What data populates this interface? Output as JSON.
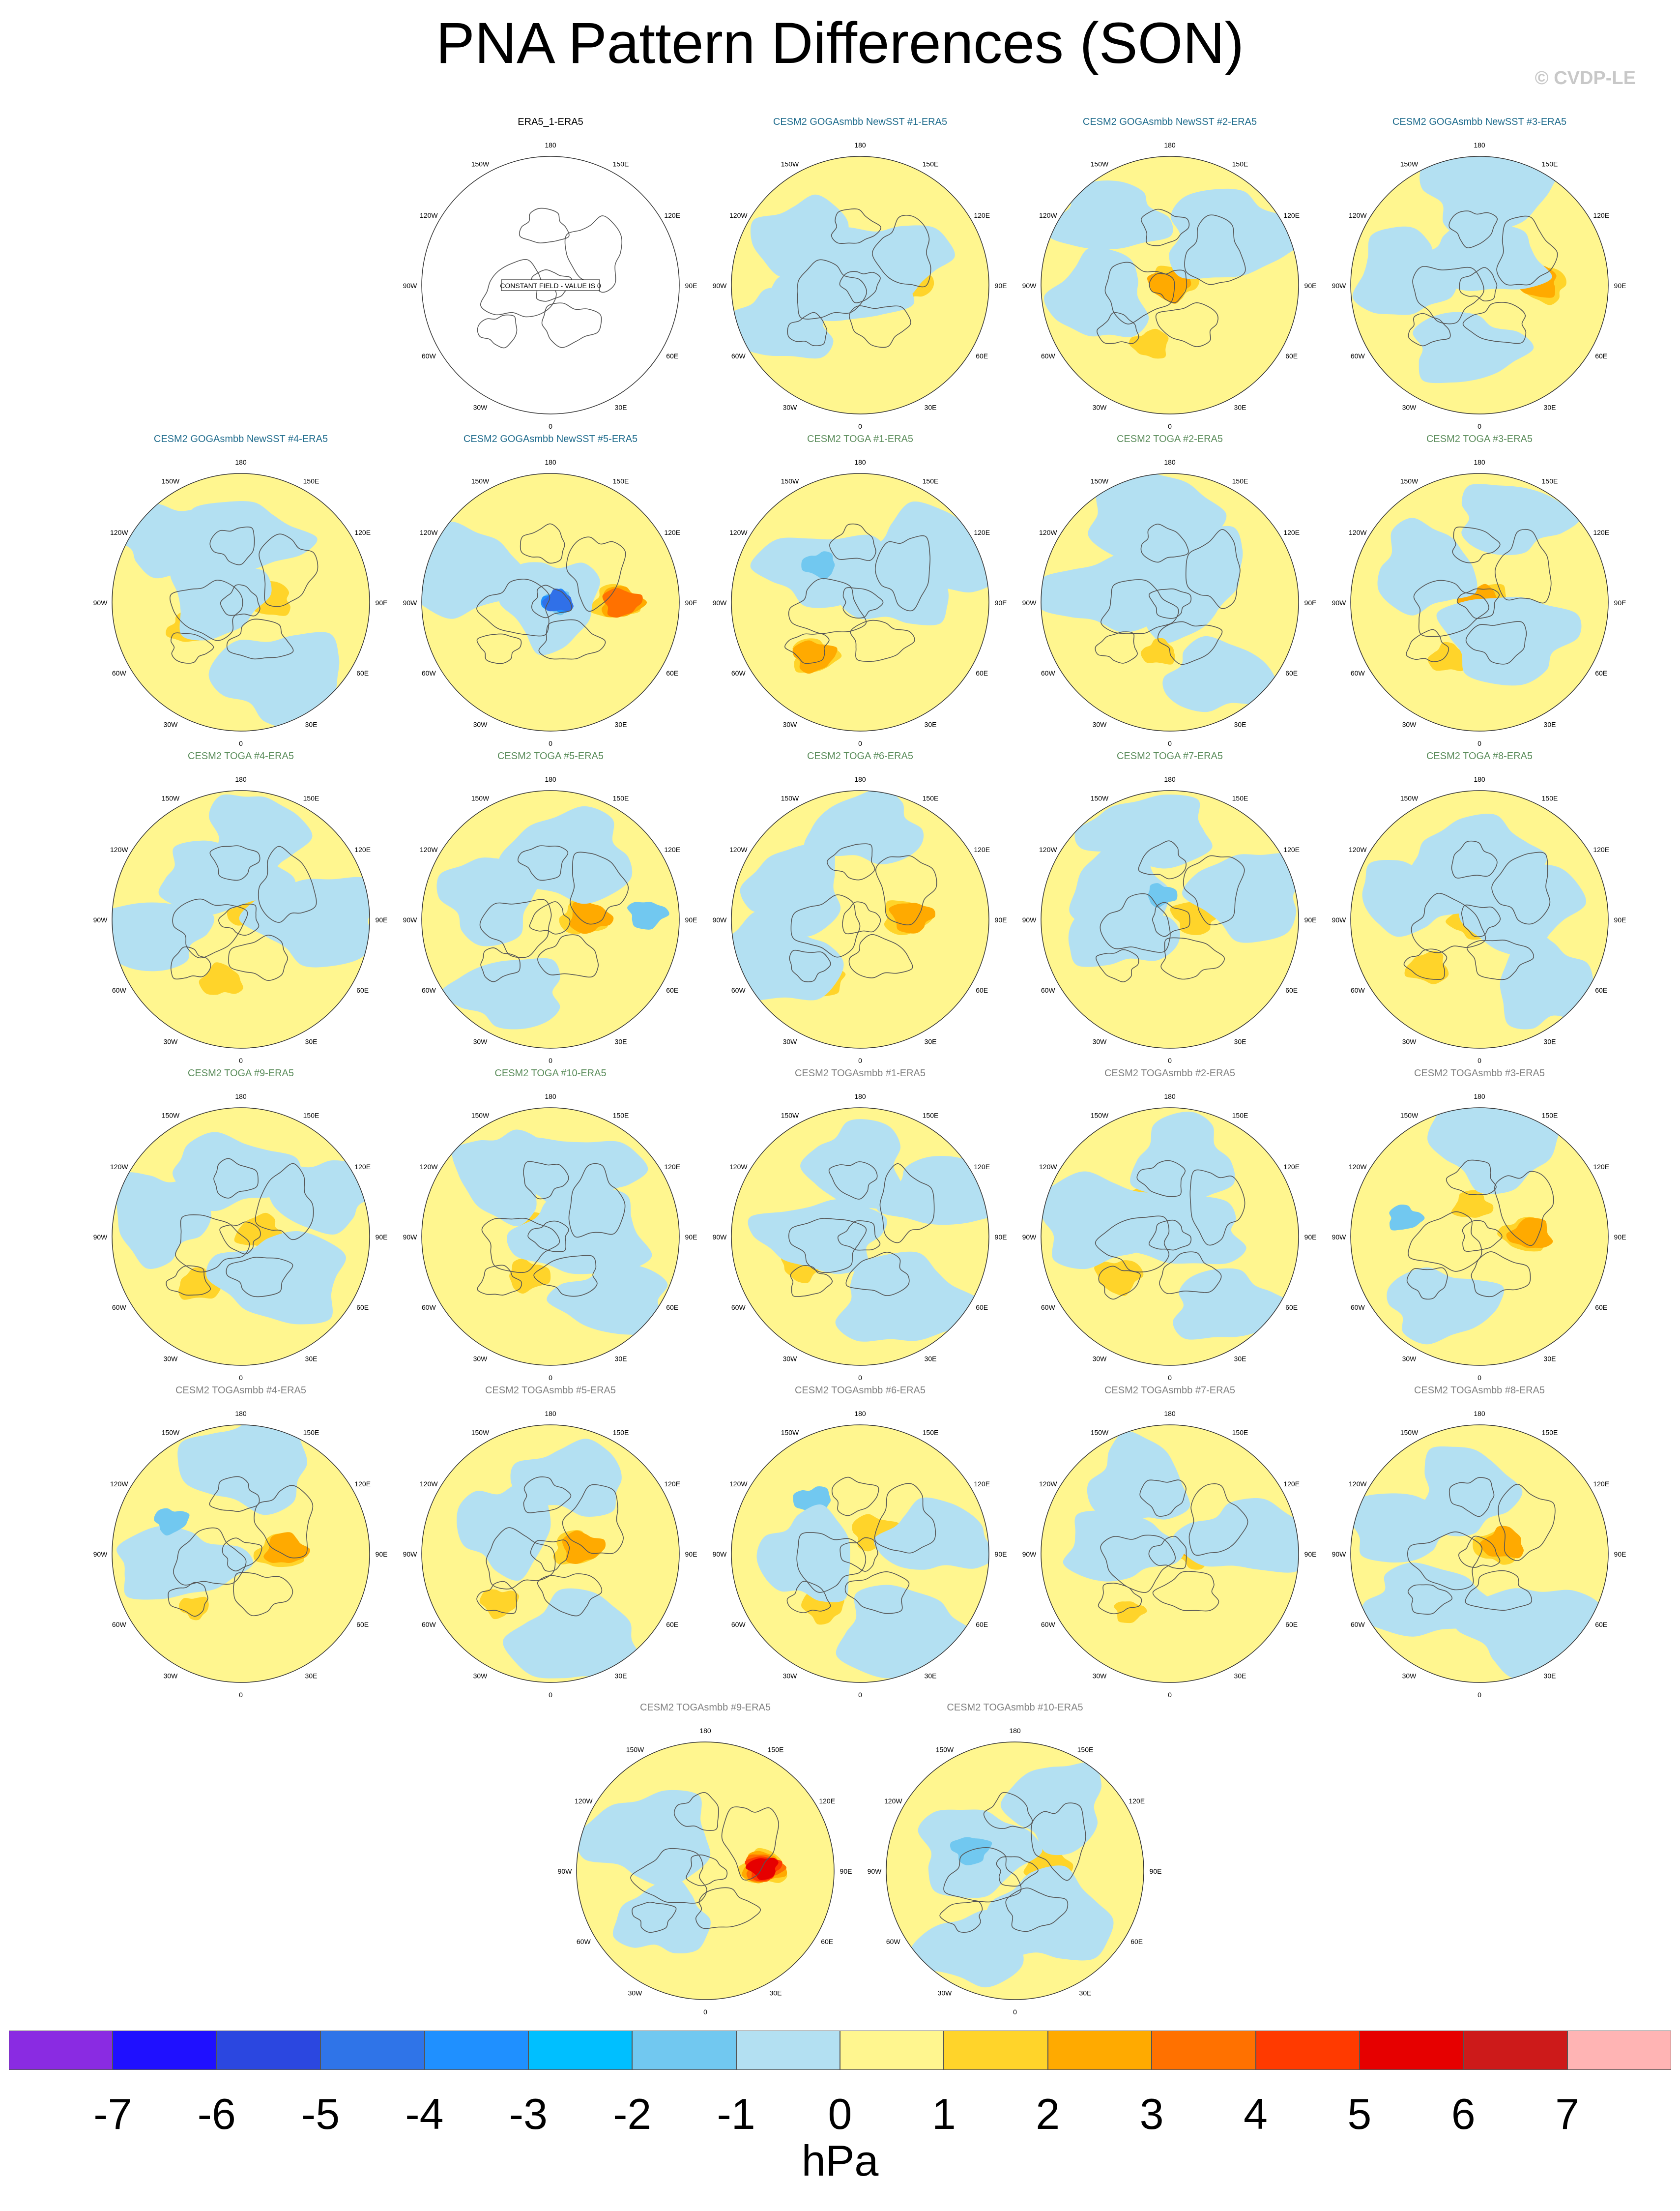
{
  "title": "PNA Pattern Differences (SON)",
  "credit": "© CVDP-LE",
  "colors": {
    "land": "#555555",
    "panel_title_obs": "#000000",
    "panel_title_goga": "#1e6b8c",
    "panel_title_toga": "#5a8c5a",
    "panel_title_togasmbb": "#808080"
  },
  "degree_labels": [
    "180",
    "150E",
    "120E",
    "90E",
    "60E",
    "30E",
    "0",
    "30W",
    "60W",
    "90W",
    "120W",
    "150W"
  ],
  "panels": [
    {
      "title": "ERA5_1-ERA5",
      "group": "obs",
      "constant": true,
      "constant_text": "CONSTANT FIELD - VALUE IS 0",
      "cells": []
    },
    {
      "title": "CESM2 GOGAsmbb NewSST #1-ERA5",
      "group": "goga",
      "cells": [
        [
          0.38,
          0.03,
          "#ffd42a"
        ],
        [
          0.28,
          -0.12,
          "#ffd42a"
        ],
        [
          0.3,
          0.8,
          "#b3e0f2"
        ],
        [
          0.55,
          2.5,
          "#b3e0f2"
        ],
        [
          0.7,
          3.6,
          "#b3e0f2"
        ],
        [
          0.15,
          2.9,
          "#b3e0f2"
        ]
      ]
    },
    {
      "title": "CESM2 GOGAsmbb NewSST #2-ERA5",
      "group": "goga",
      "cells": [
        [
          0.05,
          0.5,
          "#ffd42a"
        ],
        [
          0.0,
          0.0,
          "#ffaa00"
        ],
        [
          0.48,
          4.4,
          "#ffd42a"
        ],
        [
          0.55,
          3.3,
          "#b3e0f2"
        ],
        [
          0.7,
          2.3,
          "#b3e0f2"
        ],
        [
          0.6,
          0.7,
          "#b3e0f2"
        ]
      ]
    },
    {
      "title": "CESM2 GOGAsmbb NewSST #3-ERA5",
      "group": "goga",
      "cells": [
        [
          0.5,
          0.0,
          "#ffd42a"
        ],
        [
          0.45,
          0.05,
          "#ffaa00"
        ],
        [
          0.2,
          1.5,
          "#b3e0f2"
        ],
        [
          0.6,
          3.0,
          "#b3e0f2"
        ],
        [
          0.5,
          4.5,
          "#b3e0f2"
        ],
        [
          0.75,
          1.5,
          "#b3e0f2"
        ]
      ]
    },
    {
      "title": "CESM2 GOGAsmbb NewSST #4-ERA5",
      "group": "goga",
      "cells": [
        [
          0.22,
          0.1,
          "#ffd42a"
        ],
        [
          0.45,
          3.6,
          "#ffd42a"
        ],
        [
          0.5,
          1.6,
          "#b3e0f2"
        ],
        [
          0.2,
          2.8,
          "#b3e0f2"
        ],
        [
          0.75,
          2.4,
          "#b3e0f2"
        ],
        [
          0.65,
          5.2,
          "#b3e0f2"
        ]
      ]
    },
    {
      "title": "CESM2 GOGAsmbb NewSST #5-ERA5",
      "group": "goga",
      "cells": [
        [
          0.5,
          0.0,
          "#ffd42a"
        ],
        [
          0.55,
          0.0,
          "#ffaa00"
        ],
        [
          0.55,
          0.0,
          "#ff7100"
        ],
        [
          0.0,
          0.0,
          "#b3e0f2"
        ],
        [
          0.05,
          0.0,
          "#71c8f0"
        ],
        [
          0.05,
          0.1,
          "#1e90ff"
        ],
        [
          0.06,
          0.1,
          "#3070e8"
        ],
        [
          0.7,
          2.8,
          "#b3e0f2"
        ]
      ]
    },
    {
      "title": "CESM2 TOGA #1-ERA5",
      "group": "toga",
      "cells": [
        [
          0.55,
          4.0,
          "#ffd42a"
        ],
        [
          0.55,
          4.0,
          "#ffaa00"
        ],
        [
          0.4,
          2.4,
          "#b3e0f2"
        ],
        [
          0.43,
          2.4,
          "#71c8f0"
        ],
        [
          0.3,
          0.3,
          "#b3e0f2"
        ],
        [
          0.65,
          0.6,
          "#b3e0f2"
        ]
      ]
    },
    {
      "title": "CESM2 TOGA #2-ERA5",
      "group": "toga",
      "cells": [
        [
          0.05,
          0.0,
          "#b3e0f2"
        ],
        [
          0.3,
          1.0,
          "#b3e0f2"
        ],
        [
          0.5,
          3.0,
          "#b3e0f2"
        ],
        [
          0.4,
          4.5,
          "#ffd42a"
        ],
        [
          0.7,
          5.3,
          "#b3e0f2"
        ],
        [
          0.7,
          1.8,
          "#b3e0f2"
        ]
      ]
    },
    {
      "title": "CESM2 TOGA #3-ERA5",
      "group": "toga",
      "cells": [
        [
          0.05,
          0.2,
          "#ffd42a"
        ],
        [
          0.0,
          0.0,
          "#ffaa00"
        ],
        [
          0.5,
          4.2,
          "#ffd42a"
        ],
        [
          0.5,
          2.6,
          "#b3e0f2"
        ],
        [
          0.7,
          1.2,
          "#b3e0f2"
        ],
        [
          0.35,
          5.4,
          "#b3e0f2"
        ]
      ]
    },
    {
      "title": "CESM2 TOGA #4-ERA5",
      "group": "toga",
      "cells": [
        [
          0.1,
          0.6,
          "#ffd42a"
        ],
        [
          0.5,
          4.4,
          "#ffd42a"
        ],
        [
          0.35,
          2.0,
          "#b3e0f2"
        ],
        [
          0.65,
          1.4,
          "#b3e0f2"
        ],
        [
          0.7,
          3.3,
          "#b3e0f2"
        ],
        [
          0.6,
          0.0,
          "#b3e0f2"
        ]
      ]
    },
    {
      "title": "CESM2 TOGA #5-ERA5",
      "group": "toga",
      "cells": [
        [
          0.25,
          0.05,
          "#ffd42a"
        ],
        [
          0.3,
          0.05,
          "#ffaa00"
        ],
        [
          0.75,
          0.05,
          "#71c8f0"
        ],
        [
          0.5,
          2.8,
          "#b3e0f2"
        ],
        [
          0.65,
          4.2,
          "#b3e0f2"
        ],
        [
          0.5,
          1.3,
          "#b3e0f2"
        ]
      ]
    },
    {
      "title": "CESM2 TOGA #6-ERA5",
      "group": "toga",
      "cells": [
        [
          0.35,
          0.05,
          "#ffd42a"
        ],
        [
          0.4,
          0.05,
          "#ffaa00"
        ],
        [
          0.55,
          4.2,
          "#ffd42a"
        ],
        [
          0.55,
          2.7,
          "#b3e0f2"
        ],
        [
          0.7,
          1.5,
          "#b3e0f2"
        ],
        [
          0.75,
          3.6,
          "#b3e0f2"
        ]
      ]
    },
    {
      "title": "CESM2 TOGA #7-ERA5",
      "group": "toga",
      "cells": [
        [
          0.2,
          0.1,
          "#ffd42a"
        ],
        [
          0.65,
          0.3,
          "#b3e0f2"
        ],
        [
          0.7,
          1.8,
          "#b3e0f2"
        ],
        [
          0.45,
          2.6,
          "#b3e0f2"
        ],
        [
          0.4,
          3.4,
          "#b3e0f2"
        ],
        [
          0.2,
          1.9,
          "#71c8f0"
        ]
      ]
    },
    {
      "title": "CESM2 TOGA #8-ERA5",
      "group": "toga",
      "cells": [
        [
          0.05,
          3.5,
          "#ffd42a"
        ],
        [
          0.55,
          3.9,
          "#ffd42a"
        ],
        [
          0.5,
          1.6,
          "#b3e0f2"
        ],
        [
          0.7,
          5.5,
          "#b3e0f2"
        ],
        [
          0.55,
          2.8,
          "#b3e0f2"
        ],
        [
          0.3,
          0.4,
          "#b3e0f2"
        ]
      ]
    },
    {
      "title": "CESM2 TOGA #9-ERA5",
      "group": "toga",
      "cells": [
        [
          0.15,
          0.2,
          "#ffd42a"
        ],
        [
          0.5,
          4.0,
          "#ffd42a"
        ],
        [
          0.5,
          1.7,
          "#b3e0f2"
        ],
        [
          0.65,
          2.9,
          "#b3e0f2"
        ],
        [
          0.7,
          0.5,
          "#b3e0f2"
        ],
        [
          0.45,
          5.5,
          "#b3e0f2"
        ]
      ]
    },
    {
      "title": "CESM2 TOGA #10-ERA5",
      "group": "toga",
      "cells": [
        [
          0.1,
          2.8,
          "#ffd42a"
        ],
        [
          0.35,
          4.2,
          "#ffd42a"
        ],
        [
          0.55,
          1.2,
          "#b3e0f2"
        ],
        [
          0.6,
          2.2,
          "#b3e0f2"
        ],
        [
          0.7,
          5.5,
          "#b3e0f2"
        ],
        [
          0.25,
          0.1,
          "#b3e0f2"
        ]
      ]
    },
    {
      "title": "CESM2 TOGAsmbb #1-ERA5",
      "group": "togasmbb",
      "cells": [
        [
          0.15,
          2.6,
          "#ffd42a"
        ],
        [
          0.5,
          3.6,
          "#ffd42a"
        ],
        [
          0.3,
          3.1,
          "#b3e0f2"
        ],
        [
          0.55,
          1.6,
          "#b3e0f2"
        ],
        [
          0.7,
          0.5,
          "#b3e0f2"
        ],
        [
          0.6,
          5.3,
          "#b3e0f2"
        ]
      ]
    },
    {
      "title": "CESM2 TOGAsmbb #2-ERA5",
      "group": "togasmbb",
      "cells": [
        [
          0.5,
          3.8,
          "#ffd42a"
        ],
        [
          0.35,
          2.2,
          "#ffd42a"
        ],
        [
          0.1,
          0.4,
          "#b3e0f2"
        ],
        [
          0.6,
          1.4,
          "#b3e0f2"
        ],
        [
          0.7,
          5.4,
          "#b3e0f2"
        ],
        [
          0.55,
          2.9,
          "#b3e0f2"
        ]
      ]
    },
    {
      "title": "CESM2 TOGAsmbb #3-ERA5",
      "group": "togasmbb",
      "cells": [
        [
          0.35,
          0.05,
          "#ffd42a"
        ],
        [
          0.4,
          0.05,
          "#ffaa00"
        ],
        [
          0.25,
          1.8,
          "#ffd42a"
        ],
        [
          0.6,
          2.9,
          "#71c8f0"
        ],
        [
          0.6,
          4.2,
          "#b3e0f2"
        ],
        [
          0.75,
          1.4,
          "#b3e0f2"
        ]
      ]
    },
    {
      "title": "CESM2 TOGAsmbb #4-ERA5",
      "group": "togasmbb",
      "cells": [
        [
          0.3,
          0.05,
          "#ffd42a"
        ],
        [
          0.35,
          0.1,
          "#ffaa00"
        ],
        [
          0.5,
          3.3,
          "#b3e0f2"
        ],
        [
          0.6,
          2.7,
          "#71c8f0"
        ],
        [
          0.55,
          4.0,
          "#ffd42a"
        ],
        [
          0.7,
          1.5,
          "#b3e0f2"
        ]
      ]
    },
    {
      "title": "CESM2 TOGAsmbb #5-ERA5",
      "group": "togasmbb",
      "cells": [
        [
          0.2,
          0.2,
          "#ffd42a"
        ],
        [
          0.25,
          0.2,
          "#ffaa00"
        ],
        [
          0.55,
          3.9,
          "#ffd42a"
        ],
        [
          0.4,
          2.6,
          "#b3e0f2"
        ],
        [
          0.6,
          1.3,
          "#b3e0f2"
        ],
        [
          0.7,
          5.0,
          "#b3e0f2"
        ]
      ]
    },
    {
      "title": "CESM2 TOGAsmbb #6-ERA5",
      "group": "togasmbb",
      "cells": [
        [
          0.2,
          1.0,
          "#ffd42a"
        ],
        [
          0.5,
          4.1,
          "#ffd42a"
        ],
        [
          0.55,
          2.3,
          "#71c8f0"
        ],
        [
          0.4,
          3.2,
          "#b3e0f2"
        ],
        [
          0.6,
          0.2,
          "#b3e0f2"
        ],
        [
          0.7,
          5.2,
          "#b3e0f2"
        ]
      ]
    },
    {
      "title": "CESM2 TOGAsmbb #7-ERA5",
      "group": "togasmbb",
      "cells": [
        [
          0.2,
          0.15,
          "#ffd42a"
        ],
        [
          0.25,
          0.2,
          "#ffaa00"
        ],
        [
          0.6,
          0.2,
          "#b3e0f2"
        ],
        [
          0.6,
          2.0,
          "#b3e0f2"
        ],
        [
          0.4,
          3.0,
          "#b3e0f2"
        ],
        [
          0.55,
          4.1,
          "#ffd42a"
        ]
      ]
    },
    {
      "title": "CESM2 TOGAsmbb #8-ERA5",
      "group": "togasmbb",
      "cells": [
        [
          0.15,
          0.4,
          "#ffd42a"
        ],
        [
          0.2,
          0.4,
          "#ffaa00"
        ],
        [
          0.55,
          3.9,
          "#b3e0f2"
        ],
        [
          0.5,
          1.8,
          "#b3e0f2"
        ],
        [
          0.65,
          2.8,
          "#b3e0f2"
        ],
        [
          0.7,
          5.3,
          "#b3e0f2"
        ]
      ]
    },
    {
      "title": "CESM2 TOGAsmbb #9-ERA5",
      "group": "togasmbb",
      "cells": [
        [
          0.45,
          0.05,
          "#ffd42a"
        ],
        [
          0.45,
          0.05,
          "#ffaa00"
        ],
        [
          0.45,
          0.05,
          "#ff7100"
        ],
        [
          0.45,
          0.05,
          "#ff3a00"
        ],
        [
          0.45,
          0.05,
          "#e60000"
        ],
        [
          0.5,
          2.6,
          "#b3e0f2"
        ],
        [
          0.5,
          4.0,
          "#b3e0f2"
        ]
      ]
    },
    {
      "title": "CESM2 TOGAsmbb #10-ERA5",
      "group": "togasmbb",
      "cells": [
        [
          0.25,
          0.2,
          "#ffd42a"
        ],
        [
          0.35,
          2.7,
          "#b3e0f2"
        ],
        [
          0.38,
          2.7,
          "#71c8f0"
        ],
        [
          0.6,
          1.0,
          "#b3e0f2"
        ],
        [
          0.7,
          4.2,
          "#b3e0f2"
        ],
        [
          0.45,
          5.3,
          "#b3e0f2"
        ]
      ]
    }
  ],
  "colorbar": {
    "colors": [
      "#8a2be2",
      "#1f10ff",
      "#2b47e0",
      "#2f74e8",
      "#1f90ff",
      "#00bfff",
      "#71c8f0",
      "#b3e0f2",
      "#fff68f",
      "#ffd42a",
      "#ffaa00",
      "#ff7100",
      "#ff3a00",
      "#e60000",
      "#cd1a1a",
      "#ffb4b4"
    ],
    "labels": [
      "-7",
      "-6",
      "-5",
      "-4",
      "-3",
      "-2",
      "-1",
      "0",
      "1",
      "2",
      "3",
      "4",
      "5",
      "6",
      "7"
    ],
    "units": "hPa"
  }
}
